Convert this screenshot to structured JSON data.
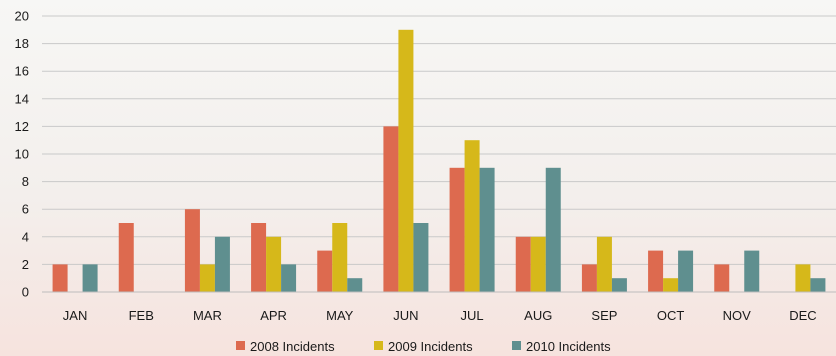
{
  "chart_data": {
    "type": "bar",
    "categories": [
      "JAN",
      "FEB",
      "MAR",
      "APR",
      "MAY",
      "JUN",
      "JUL",
      "AUG",
      "SEP",
      "OCT",
      "NOV",
      "DEC"
    ],
    "series": [
      {
        "name": "2008 Incidents",
        "color": "#dd6a4f",
        "values": [
          2,
          5,
          6,
          5,
          3,
          12,
          9,
          4,
          2,
          3,
          2,
          0
        ]
      },
      {
        "name": "2009 Incidents",
        "color": "#d6b81a",
        "values": [
          0,
          0,
          2,
          4,
          5,
          19,
          11,
          4,
          4,
          1,
          0,
          2
        ]
      },
      {
        "name": "2010 Incidents",
        "color": "#5f8f8f",
        "values": [
          2,
          0,
          4,
          2,
          1,
          5,
          9,
          9,
          1,
          3,
          3,
          1
        ]
      }
    ],
    "yticks": [
      0,
      2,
      4,
      6,
      8,
      10,
      12,
      14,
      16,
      18,
      20
    ],
    "ylim": [
      0,
      20
    ],
    "grid": true,
    "legend_position": "bottom"
  }
}
